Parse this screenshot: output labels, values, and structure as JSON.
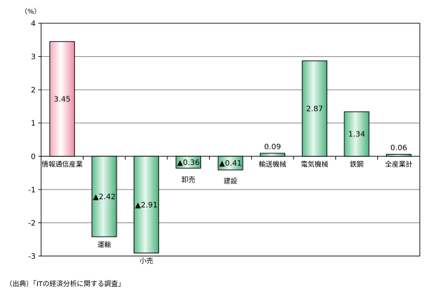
{
  "chart_data": {
    "type": "bar",
    "unit_label": "（%）",
    "categories": [
      "情報通信産業",
      "運輸",
      "小売",
      "卸売",
      "建設",
      "輸送機械",
      "電気機械",
      "鉄鋼",
      "全産業計"
    ],
    "values": [
      3.45,
      -2.42,
      -2.91,
      -0.36,
      -0.41,
      0.09,
      2.87,
      1.34,
      0.06
    ],
    "value_labels": [
      "3.45",
      "▲2.42",
      "▲2.91",
      "▲0.36",
      "▲0.41",
      "0.09",
      "2.87",
      "1.34",
      "0.06"
    ],
    "ylim": [
      -3,
      4
    ],
    "yticks": [
      -3,
      -2,
      -1,
      0,
      1,
      2,
      3,
      4
    ],
    "grid": true,
    "legend": "none",
    "colors": {
      "highlight": "#f4a6b6",
      "default": "#7fcfa4",
      "axis": "#000000",
      "grid": "#808080"
    }
  },
  "source_note": "（出典）「ITの経済分析に関する調査」"
}
